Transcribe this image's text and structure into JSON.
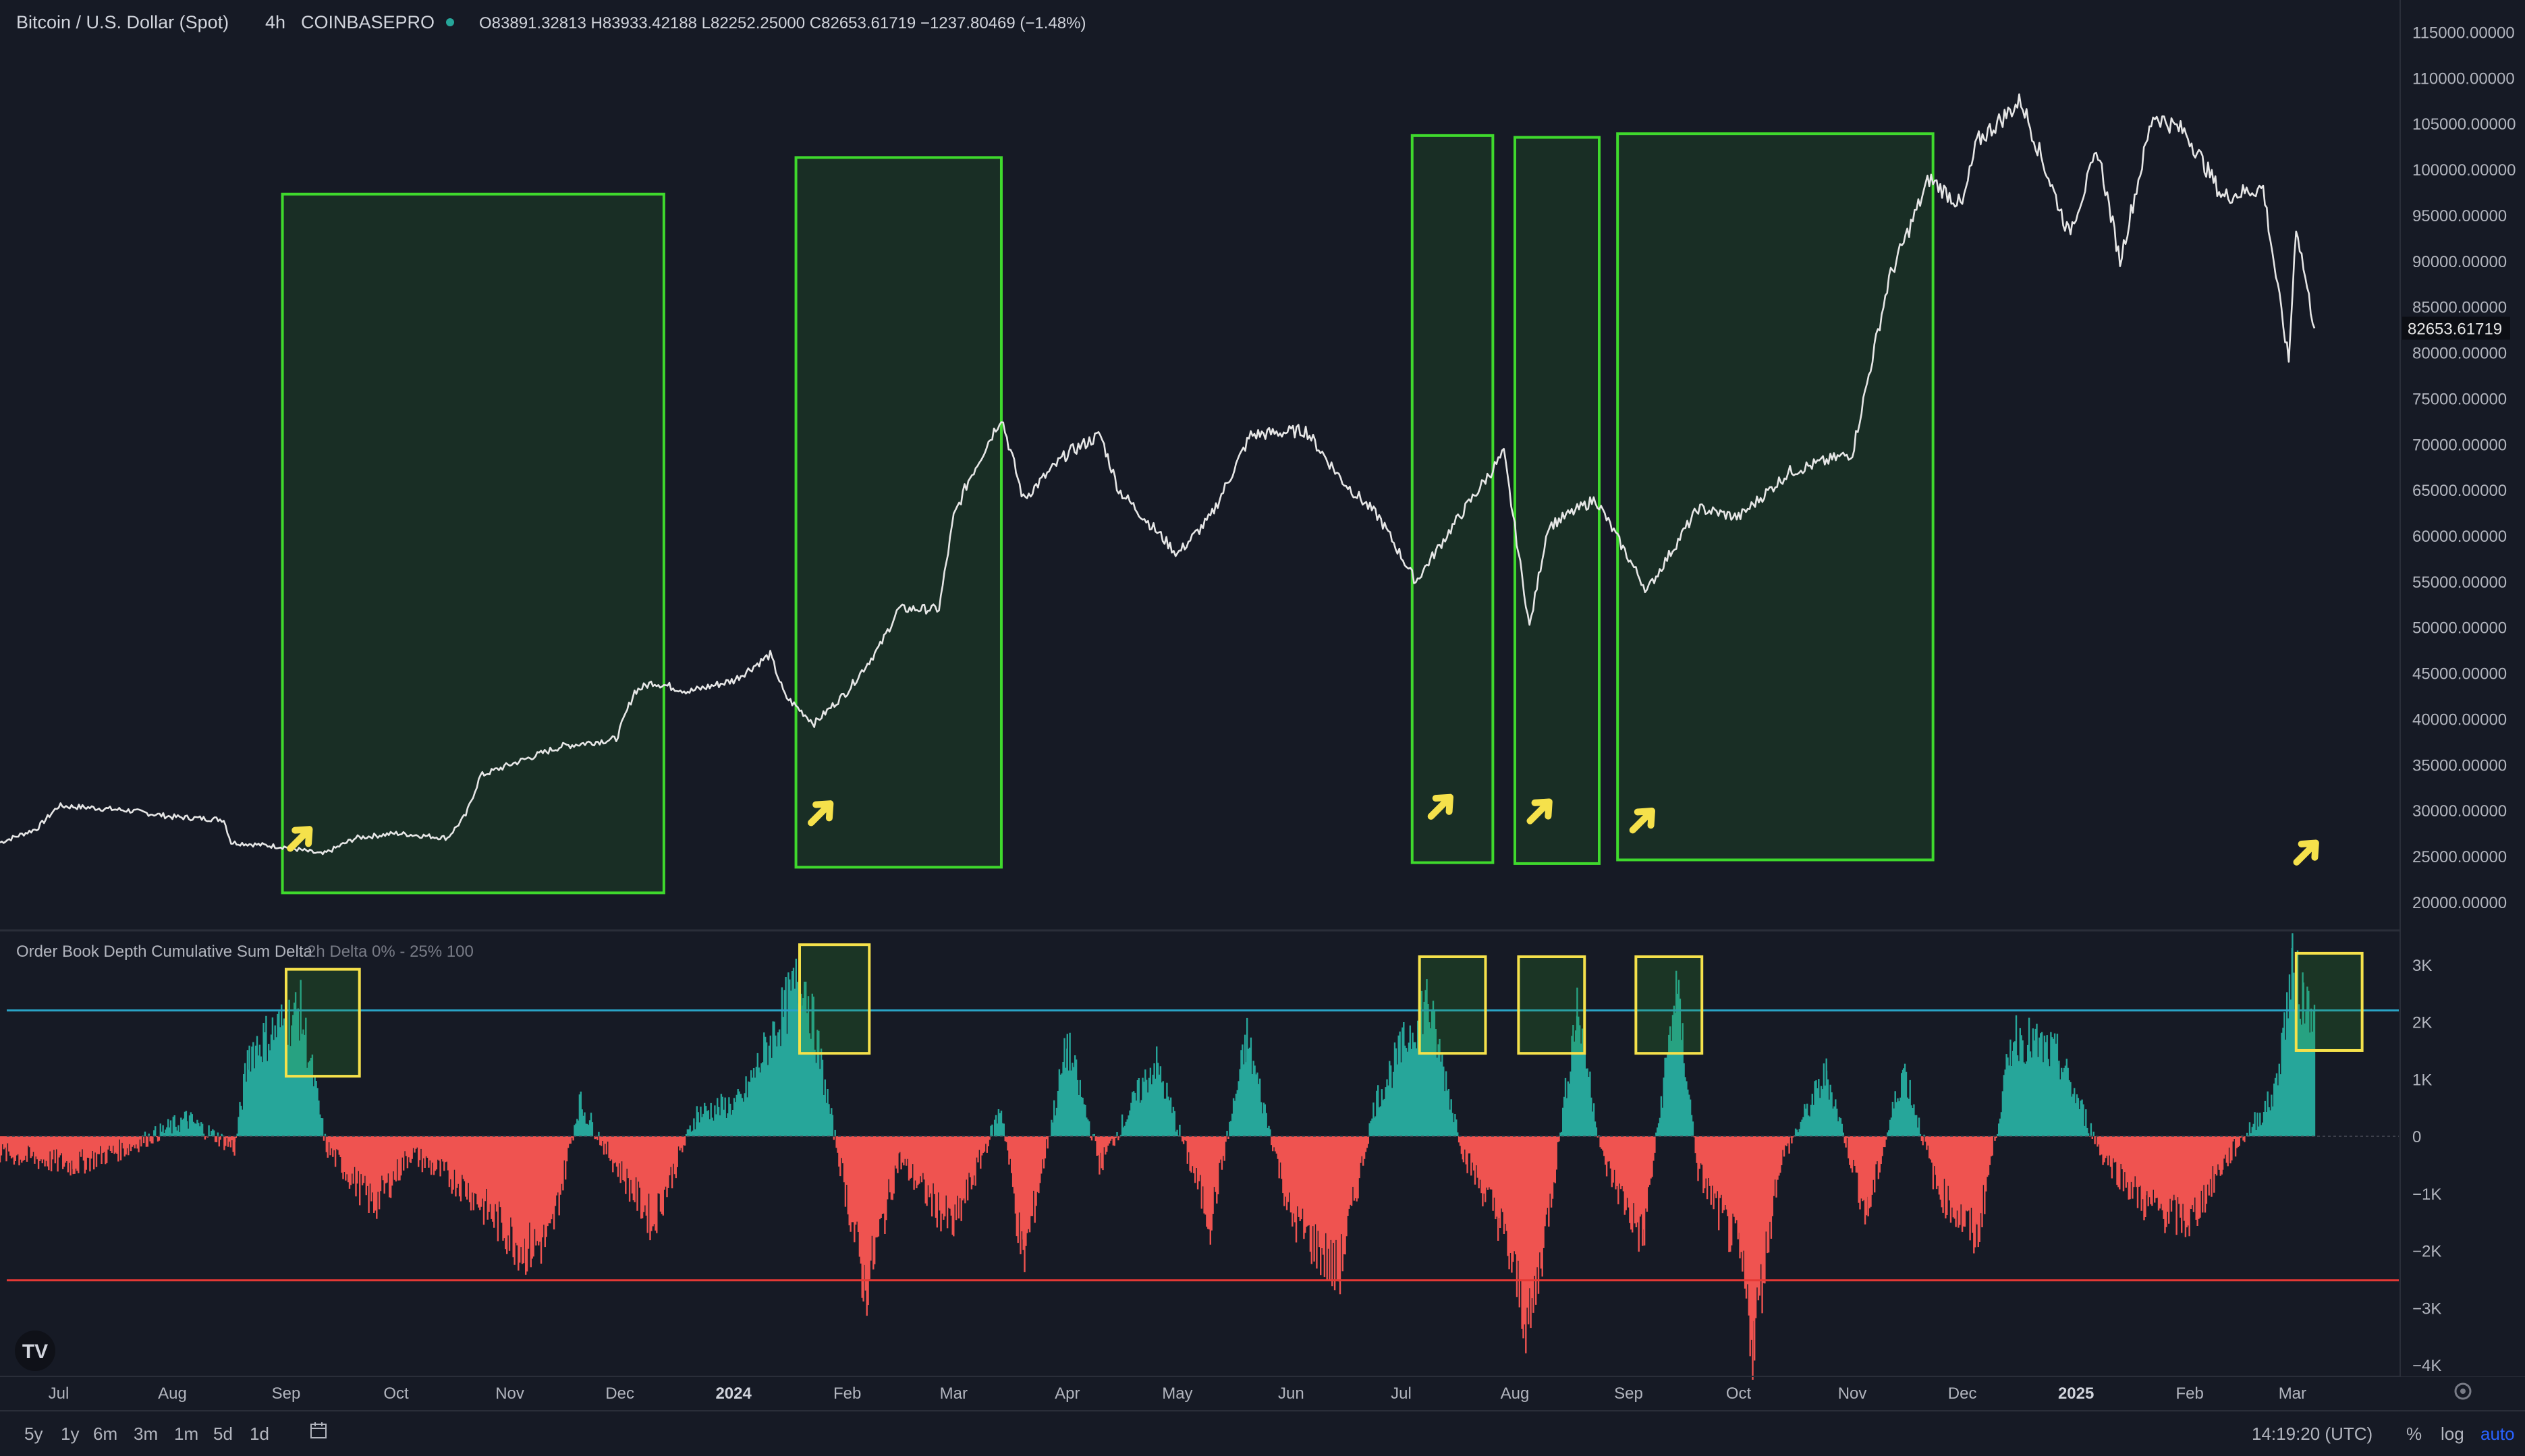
{
  "header": {
    "symbol": "Bitcoin / U.S. Dollar (Spot)",
    "interval": "4h",
    "exchange": "COINBASEPRO",
    "ohlc": "O83891.32813  H83933.42188  L82252.25000  C82653.61719  −1237.80469 (−1.48%)"
  },
  "indicator": {
    "name": "Order Book Depth Cumulative Sum Delta",
    "params": "2h Delta 0% - 25% 100"
  },
  "colors": {
    "price_line": "#e6e6e6",
    "up": "#26a69a",
    "down": "#ef5350",
    "highlight_green": "#3fd92d",
    "highlight_yellow": "#f5e14b",
    "upper_line": "#2aa3c6",
    "lower_line": "#e53935"
  },
  "chart_data": [
    {
      "type": "line",
      "title": "Bitcoin / U.S. Dollar (Spot)",
      "x_ticks": [
        "Jul",
        "Aug",
        "Sep",
        "Oct",
        "Nov",
        "Dec",
        "2024",
        "Feb",
        "Mar",
        "Apr",
        "May",
        "Jun",
        "Jul",
        "Aug",
        "Sep",
        "Oct",
        "Nov",
        "Dec",
        "2025",
        "Feb",
        "Mar"
      ],
      "y_ticks": [
        "115000.00000",
        "110000.00000",
        "105000.00000",
        "100000.00000",
        "95000.00000",
        "90000.00000",
        "85000.00000",
        "80000.00000",
        "75000.00000",
        "70000.00000",
        "65000.00000",
        "60000.00000",
        "55000.00000",
        "50000.00000",
        "45000.00000",
        "40000.00000",
        "35000.00000",
        "30000.00000",
        "25000.00000",
        "20000.00000"
      ],
      "ylim": [
        16900,
        118500
      ],
      "last_price": "82653.61719",
      "x_range": [
        "2023-06-15",
        "2025-03-30"
      ],
      "series": [
        {
          "points": [
            [
              "2023-06-15",
              26500
            ],
            [
              "2023-06-25",
              28000
            ],
            [
              "2023-07-01",
              30500
            ],
            [
              "2023-07-10",
              30300
            ],
            [
              "2023-07-20",
              30000
            ],
            [
              "2023-08-01",
              29300
            ],
            [
              "2023-08-15",
              29000
            ],
            [
              "2023-08-17",
              26500
            ],
            [
              "2023-09-01",
              26000
            ],
            [
              "2023-09-11",
              25200
            ],
            [
              "2023-09-20",
              27000
            ],
            [
              "2023-10-01",
              27500
            ],
            [
              "2023-10-15",
              27000
            ],
            [
              "2023-10-20",
              29500
            ],
            [
              "2023-10-24",
              33800
            ],
            [
              "2023-11-01",
              35000
            ],
            [
              "2023-11-15",
              37000
            ],
            [
              "2023-11-30",
              37800
            ],
            [
              "2023-12-05",
              43000
            ],
            [
              "2023-12-10",
              44000
            ],
            [
              "2023-12-20",
              43000
            ],
            [
              "2024-01-01",
              44200
            ],
            [
              "2024-01-11",
              47000
            ],
            [
              "2024-01-15",
              42500
            ],
            [
              "2024-01-23",
              39500
            ],
            [
              "2024-02-01",
              43000
            ],
            [
              "2024-02-10",
              48000
            ],
            [
              "2024-02-15",
              52000
            ],
            [
              "2024-02-26",
              52000
            ],
            [
              "2024-03-01",
              62000
            ],
            [
              "2024-03-05",
              66000
            ],
            [
              "2024-03-14",
              73000
            ],
            [
              "2024-03-20",
              64000
            ],
            [
              "2024-04-01",
              69000
            ],
            [
              "2024-04-10",
              71000
            ],
            [
              "2024-04-15",
              65000
            ],
            [
              "2024-05-01",
              58000
            ],
            [
              "2024-05-10",
              62000
            ],
            [
              "2024-05-21",
              71000
            ],
            [
              "2024-06-05",
              71500
            ],
            [
              "2024-06-15",
              66000
            ],
            [
              "2024-06-25",
              62000
            ],
            [
              "2024-07-05",
              55000
            ],
            [
              "2024-07-15",
              61000
            ],
            [
              "2024-07-29",
              69000
            ],
            [
              "2024-08-05",
              50000
            ],
            [
              "2024-08-10",
              61000
            ],
            [
              "2024-08-23",
              64000
            ],
            [
              "2024-09-06",
              54000
            ],
            [
              "2024-09-20",
              63000
            ],
            [
              "2024-10-01",
              62000
            ],
            [
              "2024-10-15",
              67000
            ],
            [
              "2024-11-01",
              69000
            ],
            [
              "2024-11-11",
              88000
            ],
            [
              "2024-11-22",
              99000
            ],
            [
              "2024-12-01",
              96000
            ],
            [
              "2024-12-05",
              103000
            ],
            [
              "2024-12-17",
              107500
            ],
            [
              "2024-12-30",
              93000
            ],
            [
              "2025-01-07",
              102000
            ],
            [
              "2025-01-13",
              90000
            ],
            [
              "2025-01-22",
              106000
            ],
            [
              "2025-01-31",
              104000
            ],
            [
              "2025-02-10",
              97000
            ],
            [
              "2025-02-21",
              98000
            ],
            [
              "2025-02-25",
              87000
            ],
            [
              "2025-02-28",
              79000
            ],
            [
              "2025-03-02",
              94000
            ],
            [
              "2025-03-05",
              87000
            ],
            [
              "2025-03-07",
              82653
            ]
          ]
        }
      ],
      "highlight_regions": [
        {
          "x0": "2023-08-31",
          "x1": "2023-12-13",
          "y0": 21000,
          "y1": 97300
        },
        {
          "x0": "2024-01-18",
          "x1": "2024-03-14",
          "y0": 23800,
          "y1": 101300
        },
        {
          "x0": "2024-07-04",
          "x1": "2024-07-26",
          "y0": 24300,
          "y1": 103700
        },
        {
          "x0": "2024-08-01",
          "x1": "2024-08-24",
          "y0": 24200,
          "y1": 103500
        },
        {
          "x0": "2024-08-29",
          "x1": "2024-11-23",
          "y0": 24600,
          "y1": 103900
        }
      ],
      "annotation_arrows": [
        {
          "x": "2023-09-05",
          "y": 27000
        },
        {
          "x": "2024-01-25",
          "y": 29800
        },
        {
          "x": "2024-07-12",
          "y": 30500
        },
        {
          "x": "2024-08-08",
          "y": 30000
        },
        {
          "x": "2024-09-05",
          "y": 29000
        },
        {
          "x": "2025-03-05",
          "y": 25500
        }
      ]
    },
    {
      "type": "area",
      "title": "Order Book Depth Cumulative Sum Delta",
      "y_ticks": [
        "3K",
        "2K",
        "1K",
        "0",
        "−1K",
        "−2K",
        "−3K",
        "−4K"
      ],
      "ylim": [
        -4200,
        3600
      ],
      "upper_line": 2200,
      "lower_line": -2520,
      "series": [
        {
          "points": [
            [
              "2023-06-15",
              -300
            ],
            [
              "2023-07-05",
              -500
            ],
            [
              "2023-07-20",
              -200
            ],
            [
              "2023-08-05",
              300
            ],
            [
              "2023-08-18",
              -200
            ],
            [
              "2023-08-22",
              1500
            ],
            [
              "2023-09-05",
              2200
            ],
            [
              "2023-09-12",
              -200
            ],
            [
              "2023-09-25",
              -1200
            ],
            [
              "2023-10-05",
              -300
            ],
            [
              "2023-10-20",
              -900
            ],
            [
              "2023-11-05",
              -2000
            ],
            [
              "2023-11-12",
              -1800
            ],
            [
              "2023-11-20",
              600
            ],
            [
              "2023-11-27",
              -200
            ],
            [
              "2023-12-10",
              -1500
            ],
            [
              "2023-12-22",
              400
            ],
            [
              "2024-01-03",
              600
            ],
            [
              "2024-01-20",
              2900
            ],
            [
              "2024-01-28",
              200
            ],
            [
              "2024-02-06",
              -2700
            ],
            [
              "2024-02-15",
              -400
            ],
            [
              "2024-03-01",
              -1600
            ],
            [
              "2024-03-14",
              500
            ],
            [
              "2024-03-20",
              -2200
            ],
            [
              "2024-04-01",
              1600
            ],
            [
              "2024-04-10",
              -500
            ],
            [
              "2024-04-25",
              1300
            ],
            [
              "2024-05-10",
              -1500
            ],
            [
              "2024-05-20",
              1700
            ],
            [
              "2024-06-01",
              -1400
            ],
            [
              "2024-06-14",
              -2400
            ],
            [
              "2024-06-24",
              600
            ],
            [
              "2024-07-08",
              2400
            ],
            [
              "2024-07-18",
              -300
            ],
            [
              "2024-07-28",
              -1500
            ],
            [
              "2024-08-05",
              -3400
            ],
            [
              "2024-08-12",
              -600
            ],
            [
              "2024-08-18",
              2300
            ],
            [
              "2024-08-25",
              -400
            ],
            [
              "2024-09-05",
              -1800
            ],
            [
              "2024-09-14",
              2600
            ],
            [
              "2024-09-20",
              -600
            ],
            [
              "2024-10-01",
              -2000
            ],
            [
              "2024-10-05",
              -3600
            ],
            [
              "2024-10-12",
              -500
            ],
            [
              "2024-10-25",
              1100
            ],
            [
              "2024-11-05",
              -1400
            ],
            [
              "2024-11-15",
              1200
            ],
            [
              "2024-11-24",
              -900
            ],
            [
              "2024-12-05",
              -1800
            ],
            [
              "2024-12-15",
              1800
            ],
            [
              "2024-12-27",
              1400
            ],
            [
              "2025-01-08",
              -300
            ],
            [
              "2025-01-20",
              -1200
            ],
            [
              "2025-02-01",
              -1500
            ],
            [
              "2025-02-10",
              -500
            ],
            [
              "2025-02-24",
              700
            ],
            [
              "2025-03-01",
              2900
            ],
            [
              "2025-03-04",
              2400
            ],
            [
              "2025-03-07",
              2300
            ]
          ]
        }
      ],
      "highlight_regions": [
        {
          "x0": "2023-09-01",
          "x1": "2023-09-21",
          "y0": 1050,
          "y1": 2920
        },
        {
          "x0": "2024-01-19",
          "x1": "2024-02-07",
          "y0": 1450,
          "y1": 3350
        },
        {
          "x0": "2024-07-06",
          "x1": "2024-07-24",
          "y0": 1450,
          "y1": 3140
        },
        {
          "x0": "2024-08-02",
          "x1": "2024-08-20",
          "y0": 1450,
          "y1": 3140
        },
        {
          "x0": "2024-09-03",
          "x1": "2024-09-21",
          "y0": 1450,
          "y1": 3140
        },
        {
          "x0": "2025-03-02",
          "x1": "2025-03-20",
          "y0": 1500,
          "y1": 3200
        }
      ]
    }
  ],
  "time_axis_bold": [
    "2024",
    "2025"
  ],
  "toolbar": {
    "ranges": [
      "5y",
      "1y",
      "6m",
      "3m",
      "1m",
      "5d",
      "1d"
    ],
    "time": "14:19:20 (UTC)",
    "percent": "%",
    "log": "log",
    "auto": "auto",
    "icons": [
      "calendar-range-icon",
      "settings-gear-icon"
    ]
  }
}
